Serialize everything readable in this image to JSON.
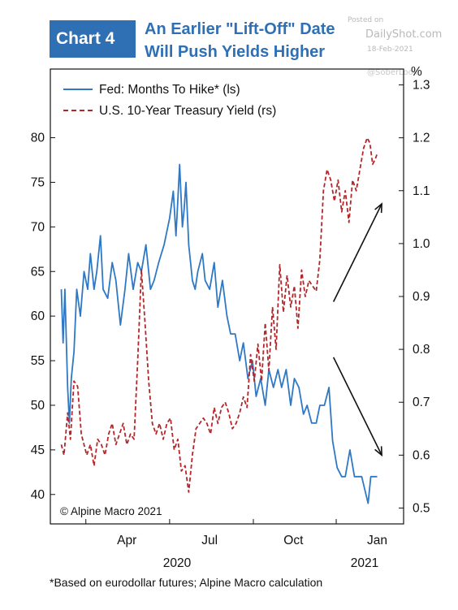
{
  "header": {
    "badge": "Chart 4",
    "title_line1": "An Earlier \"Lift-Off\" Date",
    "title_line2": "Will Push Yields Higher"
  },
  "watermark": {
    "posted_on": "Posted on",
    "site": "DailyShot.com",
    "date": "18-Feb-2021",
    "handle": "@SoberLook"
  },
  "credit": "© Alpine Macro 2021",
  "footnote": "*Based on eurodollar futures; Alpine Macro calculation",
  "colors": {
    "fed": "#2f78c4",
    "ust": "#b3272a",
    "brand": "#2f6fb3"
  },
  "chart_data": {
    "type": "line",
    "x_ticks": [
      "Apr",
      "Jul",
      "Oct",
      "Jan"
    ],
    "year_labels": [
      "2020",
      "2021"
    ],
    "y_left": {
      "ticks": [
        40,
        45,
        50,
        55,
        60,
        65,
        70,
        75,
        80
      ],
      "range": [
        36.7,
        87.7
      ]
    },
    "y_right": {
      "unit": "%",
      "ticks": [
        0.5,
        0.6,
        0.7,
        0.8,
        0.9,
        1.0,
        1.1,
        1.2,
        1.3
      ],
      "range": [
        0.47,
        1.33
      ]
    },
    "legend_position": "top-left",
    "series": [
      {
        "name": "Fed: Months To Hike* (ls)",
        "axis": "left",
        "style": "solid",
        "x": [
          "2020-02-03",
          "2020-02-05",
          "2020-02-07",
          "2020-02-10",
          "2020-02-12",
          "2020-02-14",
          "2020-02-17",
          "2020-02-20",
          "2020-02-24",
          "2020-02-28",
          "2020-03-03",
          "2020-03-06",
          "2020-03-10",
          "2020-03-13",
          "2020-03-17",
          "2020-03-20",
          "2020-03-25",
          "2020-03-30",
          "2020-04-03",
          "2020-04-08",
          "2020-04-13",
          "2020-04-17",
          "2020-04-22",
          "2020-04-27",
          "2020-05-01",
          "2020-05-06",
          "2020-05-11",
          "2020-05-15",
          "2020-05-20",
          "2020-05-26",
          "2020-06-01",
          "2020-06-05",
          "2020-06-08",
          "2020-06-10",
          "2020-06-12",
          "2020-06-15",
          "2020-06-17",
          "2020-06-19",
          "2020-06-22",
          "2020-06-24",
          "2020-06-26",
          "2020-06-29",
          "2020-07-02",
          "2020-07-07",
          "2020-07-10",
          "2020-07-15",
          "2020-07-20",
          "2020-07-24",
          "2020-07-29",
          "2020-08-03",
          "2020-08-07",
          "2020-08-12",
          "2020-08-17",
          "2020-08-21",
          "2020-08-26",
          "2020-08-31",
          "2020-09-04",
          "2020-09-09",
          "2020-09-14",
          "2020-09-18",
          "2020-09-23",
          "2020-09-28",
          "2020-10-02",
          "2020-10-07",
          "2020-10-12",
          "2020-10-16",
          "2020-10-21",
          "2020-10-26",
          "2020-10-30",
          "2020-11-04",
          "2020-11-09",
          "2020-11-13",
          "2020-11-18",
          "2020-11-23",
          "2020-11-27",
          "2020-12-02",
          "2020-12-07",
          "2020-12-11",
          "2020-12-16",
          "2020-12-21",
          "2020-12-24",
          "2020-12-29",
          "2021-01-05",
          "2021-01-08",
          "2021-01-12",
          "2021-01-15"
        ],
        "values": [
          63,
          57,
          63,
          52,
          48,
          53,
          56,
          63,
          60,
          65,
          63,
          67,
          63,
          65,
          69,
          63,
          62,
          66,
          64,
          59,
          63,
          67,
          63,
          66,
          65,
          68,
          63,
          64,
          66,
          68,
          71,
          74,
          69,
          73,
          77,
          70,
          72,
          75,
          68,
          66,
          64,
          63,
          65,
          67,
          64,
          63,
          66,
          61,
          64,
          60,
          58,
          58,
          55,
          57,
          53,
          55,
          51,
          53,
          50,
          54,
          52,
          54,
          52,
          54,
          50,
          53,
          52,
          49,
          50,
          48,
          48,
          50,
          50,
          52,
          46,
          43,
          42,
          42,
          45,
          42,
          42,
          42,
          39,
          42,
          42,
          42
        ]
      },
      {
        "name": "U.S. 10-Year Treasury Yield (rs)",
        "axis": "right",
        "style": "dashed",
        "x": [
          "2020-02-03",
          "2020-02-06",
          "2020-02-10",
          "2020-02-13",
          "2020-02-17",
          "2020-02-21",
          "2020-02-25",
          "2020-03-02",
          "2020-03-06",
          "2020-03-10",
          "2020-03-14",
          "2020-03-18",
          "2020-03-22",
          "2020-03-26",
          "2020-03-30",
          "2020-04-03",
          "2020-04-07",
          "2020-04-11",
          "2020-04-15",
          "2020-04-19",
          "2020-04-23",
          "2020-04-27",
          "2020-05-01",
          "2020-05-05",
          "2020-05-09",
          "2020-05-13",
          "2020-05-17",
          "2020-05-21",
          "2020-05-25",
          "2020-05-29",
          "2020-06-02",
          "2020-06-06",
          "2020-06-10",
          "2020-06-14",
          "2020-06-18",
          "2020-06-22",
          "2020-06-26",
          "2020-06-30",
          "2020-07-04",
          "2020-07-08",
          "2020-07-12",
          "2020-07-16",
          "2020-07-20",
          "2020-07-24",
          "2020-07-28",
          "2020-08-01",
          "2020-08-05",
          "2020-08-09",
          "2020-08-13",
          "2020-08-17",
          "2020-08-21",
          "2020-08-25",
          "2020-08-29",
          "2020-09-02",
          "2020-09-06",
          "2020-09-10",
          "2020-09-14",
          "2020-09-18",
          "2020-09-22",
          "2020-09-26",
          "2020-09-30",
          "2020-10-04",
          "2020-10-08",
          "2020-10-12",
          "2020-10-16",
          "2020-10-20",
          "2020-10-24",
          "2020-10-28",
          "2020-11-01",
          "2020-11-05",
          "2020-11-09",
          "2020-11-13",
          "2020-11-17",
          "2020-11-21",
          "2020-11-25",
          "2020-11-29",
          "2020-12-03",
          "2020-12-07",
          "2020-12-11",
          "2020-12-15",
          "2020-12-19",
          "2020-12-23",
          "2020-12-27",
          "2020-12-31",
          "2021-01-04",
          "2021-01-07",
          "2021-01-10",
          "2021-01-13",
          "2021-01-15"
        ],
        "values": [
          0.62,
          0.6,
          0.68,
          0.63,
          0.74,
          0.73,
          0.64,
          0.6,
          0.62,
          0.58,
          0.63,
          0.62,
          0.6,
          0.64,
          0.66,
          0.62,
          0.64,
          0.66,
          0.62,
          0.64,
          0.63,
          0.78,
          0.95,
          0.85,
          0.74,
          0.66,
          0.64,
          0.66,
          0.63,
          0.66,
          0.67,
          0.61,
          0.63,
          0.57,
          0.58,
          0.53,
          0.6,
          0.65,
          0.66,
          0.67,
          0.66,
          0.64,
          0.69,
          0.66,
          0.69,
          0.7,
          0.68,
          0.65,
          0.66,
          0.68,
          0.71,
          0.69,
          0.79,
          0.74,
          0.81,
          0.74,
          0.85,
          0.76,
          0.88,
          0.8,
          0.96,
          0.87,
          0.94,
          0.88,
          0.92,
          0.84,
          0.95,
          0.9,
          0.93,
          0.92,
          0.91,
          0.97,
          1.1,
          1.14,
          1.12,
          1.08,
          1.12,
          1.06,
          1.1,
          1.04,
          1.12,
          1.1,
          1.14,
          1.18,
          1.2,
          1.19,
          1.15,
          1.16,
          1.17
        ]
      }
    ],
    "annotations": [
      {
        "type": "arrow",
        "direction": "up-right",
        "from": [
          "2020-11-28",
          0.89
        ],
        "to": [
          "2021-01-20",
          1.075
        ]
      },
      {
        "type": "arrow",
        "direction": "down-right",
        "from": [
          "2020-11-28",
          0.785
        ],
        "to": [
          "2021-01-20",
          0.6
        ]
      }
    ]
  }
}
